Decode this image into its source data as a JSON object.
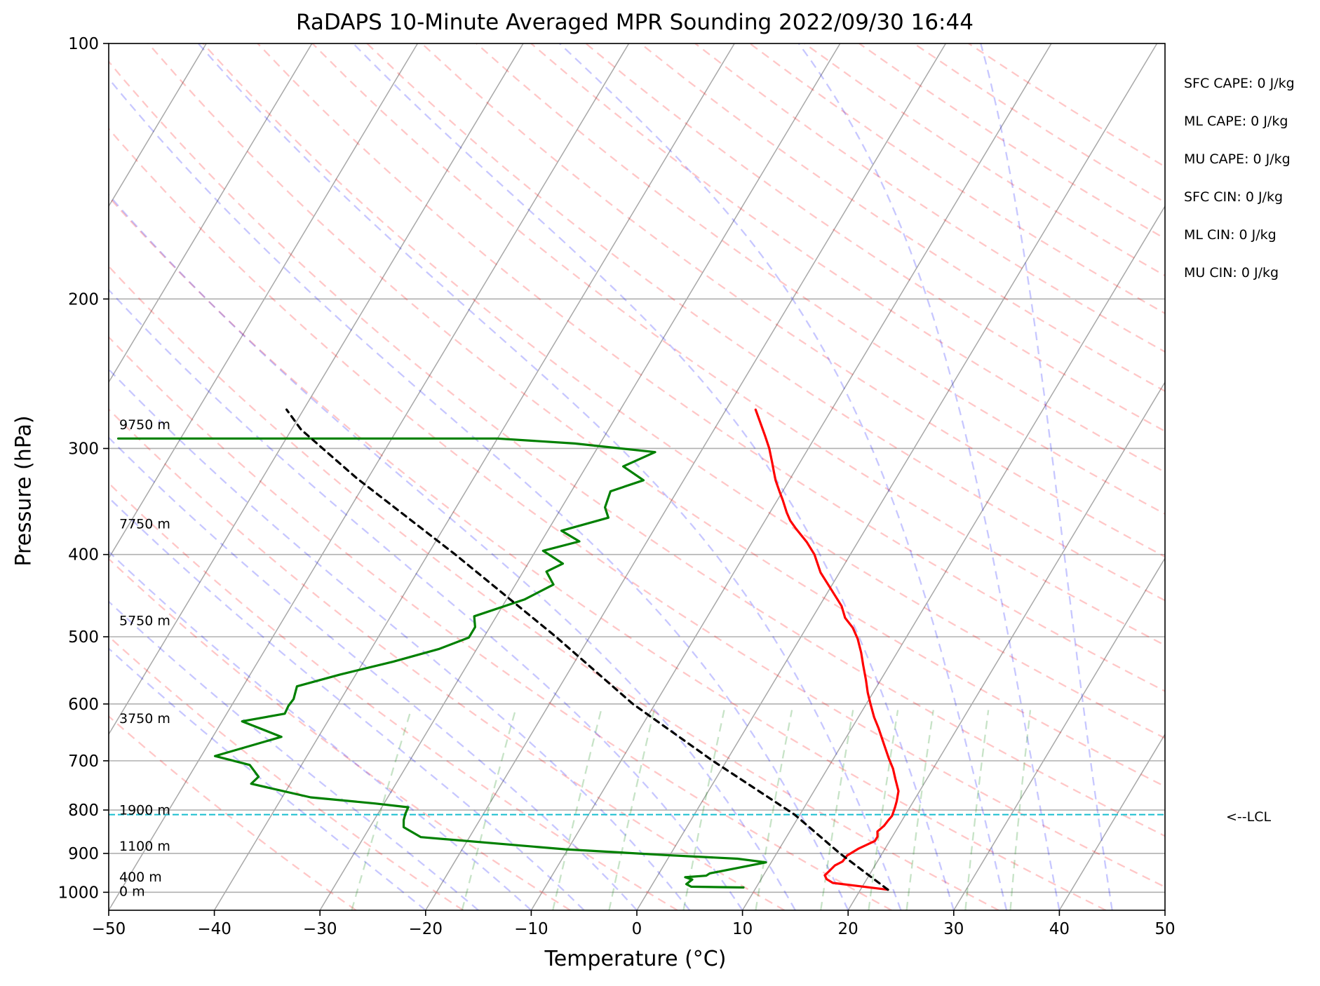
{
  "title": "RaDAPS 10-Minute Averaged MPR Sounding 2022/09/30 16:44",
  "indices": [
    "SFC CAPE: 0 J/kg",
    "ML CAPE: 0 J/kg",
    "MU CAPE: 0 J/kg",
    "SFC CIN: 0 J/kg",
    "ML CIN: 0 J/kg",
    "MU CIN: 0 J/kg"
  ],
  "lcl_label": "<--LCL",
  "chart_data": {
    "type": "line",
    "title": "RaDAPS 10-Minute Averaged MPR Sounding 2022/09/30 16:44",
    "xlabel": "Temperature (°C)",
    "ylabel": "Pressure (hPa)",
    "xlim": [
      -50,
      50
    ],
    "ylim": [
      1050,
      100
    ],
    "y_scale": "log",
    "skew": "skew-T log-P",
    "grid": true,
    "x_ticks": [
      "−50",
      "−40",
      "−30",
      "−20",
      "−10",
      "0",
      "10",
      "20",
      "30",
      "40",
      "50"
    ],
    "y_ticks": [
      100,
      200,
      300,
      400,
      500,
      600,
      700,
      800,
      900,
      1000
    ],
    "height_labels": [
      {
        "text": "9750 m",
        "p": 282
      },
      {
        "text": "7750 m",
        "p": 369
      },
      {
        "text": "5750 m",
        "p": 480
      },
      {
        "text": "3750 m",
        "p": 626
      },
      {
        "text": "1900 m",
        "p": 802
      },
      {
        "text": "1100 m",
        "p": 885
      },
      {
        "text": "400 m",
        "p": 962
      },
      {
        "text": "0 m",
        "p": 1000
      }
    ],
    "lcl_pressure": 810,
    "series": [
      {
        "name": "",
        "color": "#ff0000",
        "points": [
          [
            22.6,
            993
          ],
          [
            19.5,
            983
          ],
          [
            17,
            975
          ],
          [
            16.2,
            965
          ],
          [
            15.8,
            955
          ],
          [
            16.0,
            943
          ],
          [
            16.2,
            930
          ],
          [
            16.7,
            920
          ],
          [
            16.8,
            905
          ],
          [
            17.5,
            888
          ],
          [
            18.6,
            870
          ],
          [
            18.6,
            860
          ],
          [
            18.3,
            848
          ],
          [
            18.6,
            835
          ],
          [
            18.7,
            822
          ],
          [
            18.8,
            813
          ],
          [
            18.6,
            795
          ],
          [
            18.4,
            781
          ],
          [
            18.0,
            760
          ],
          [
            17.0,
            735
          ],
          [
            16.2,
            715
          ],
          [
            15.2,
            695
          ],
          [
            14.0,
            670
          ],
          [
            12.5,
            640
          ],
          [
            11.5,
            622
          ],
          [
            10.5,
            602
          ],
          [
            9.5,
            582
          ],
          [
            8.6,
            562
          ],
          [
            7.5,
            540
          ],
          [
            6.6,
            522
          ],
          [
            5.5,
            503
          ],
          [
            4.4,
            488
          ],
          [
            3.1,
            475
          ],
          [
            2.1,
            460
          ],
          [
            0.2,
            440
          ],
          [
            -1.8,
            420
          ],
          [
            -3.4,
            400
          ],
          [
            -4.8,
            387
          ],
          [
            -6.6,
            373
          ],
          [
            -7.6,
            365
          ],
          [
            -8.4,
            357
          ],
          [
            -9.5,
            345
          ],
          [
            -10.3,
            337
          ],
          [
            -11.3,
            327
          ],
          [
            -11.9,
            320
          ],
          [
            -12.6,
            312
          ],
          [
            -13.7,
            300
          ],
          [
            -14.8,
            290
          ],
          [
            -17.2,
            270
          ]
        ]
      },
      {
        "name": "",
        "color": "#008000",
        "points": [
          [
            8.8,
            987
          ],
          [
            3.8,
            985
          ],
          [
            3.2,
            978
          ],
          [
            3.5,
            966
          ],
          [
            2.7,
            960
          ],
          [
            4.6,
            956
          ],
          [
            4.8,
            950
          ],
          [
            6.3,
            941
          ],
          [
            9.5,
            922
          ],
          [
            6.6,
            913
          ],
          [
            -0.4,
            904
          ],
          [
            -10.2,
            890
          ],
          [
            -24.6,
            861
          ],
          [
            -26.8,
            838
          ],
          [
            -27.2,
            822
          ],
          [
            -27.4,
            808
          ],
          [
            -27.5,
            794
          ],
          [
            -30.8,
            786
          ],
          [
            -37.3,
            773
          ],
          [
            -43.7,
            745
          ],
          [
            -43.4,
            731
          ],
          [
            -44.9,
            708
          ],
          [
            -48.7,
            691
          ],
          [
            -43.5,
            656
          ],
          [
            -48.1,
            629
          ],
          [
            -44.5,
            616
          ],
          [
            -44.6,
            603
          ],
          [
            -44.5,
            592
          ],
          [
            -44.9,
            572
          ],
          [
            -41.5,
            554
          ],
          [
            -37.2,
            535
          ],
          [
            -33.6,
            517
          ],
          [
            -31.4,
            501
          ],
          [
            -31.4,
            487
          ],
          [
            -32.1,
            473
          ],
          [
            -28.3,
            452
          ],
          [
            -26.4,
            434
          ],
          [
            -27.8,
            419
          ],
          [
            -26.7,
            410
          ],
          [
            -29.3,
            396
          ],
          [
            -26.4,
            386
          ],
          [
            -28.7,
            375
          ],
          [
            -25.0,
            362
          ],
          [
            -25.9,
            352
          ],
          [
            -26.3,
            337
          ],
          [
            -23.8,
            327
          ],
          [
            -26.5,
            315
          ],
          [
            -24.3,
            303
          ],
          [
            -32.4,
            296
          ],
          [
            -40.0,
            292
          ],
          [
            -59.6,
            292
          ],
          [
            -75.9,
            292
          ]
        ]
      },
      {
        "name": "",
        "color": "#000000",
        "dash": "8,7",
        "points": [
          [
            22.6,
            993
          ],
          [
            16.0,
            900
          ],
          [
            9.5,
            810
          ],
          [
            -1.3,
            700
          ],
          [
            -12.1,
            600
          ],
          [
            -23.2,
            500
          ],
          [
            -37.4,
            400
          ],
          [
            -51.1,
            325
          ],
          [
            -59.1,
            285
          ],
          [
            -61.6,
            270
          ]
        ]
      }
    ]
  }
}
